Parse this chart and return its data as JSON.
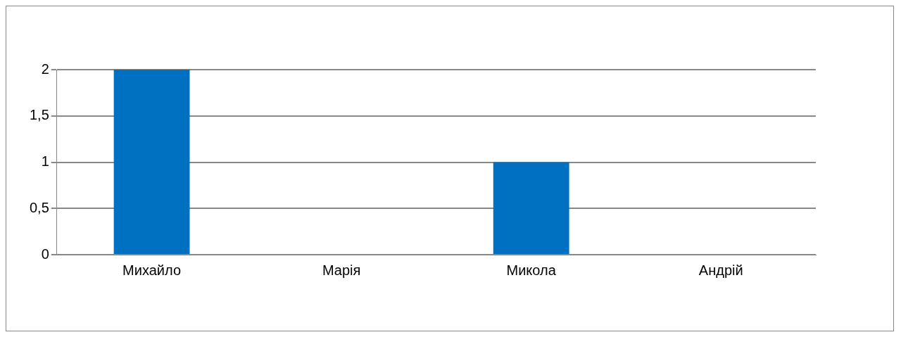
{
  "chart_data": {
    "type": "bar",
    "categories": [
      "Михайло",
      "Марія",
      "Микола",
      "Андрій"
    ],
    "values": [
      2,
      0,
      1,
      0
    ],
    "color": "#0070c0",
    "ylim": [
      0,
      2
    ],
    "yticks": [
      0,
      {
        "value": 0.5,
        "label": "0,5"
      },
      1,
      {
        "value": 1.5,
        "label": "1,5"
      },
      2
    ],
    "grid": "y"
  }
}
